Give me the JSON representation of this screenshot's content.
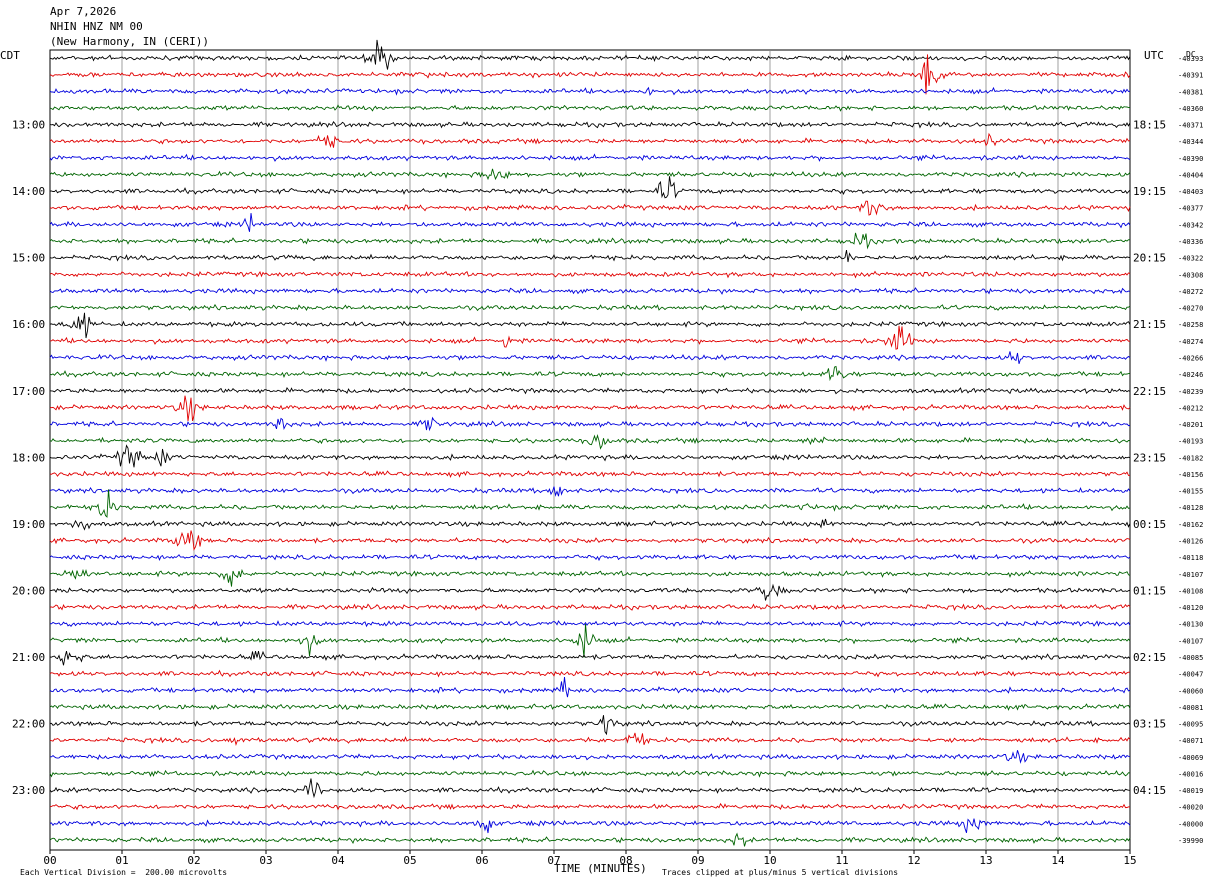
{
  "header": {
    "date": "Apr 7,2026",
    "station": "NHIN HNZ NM 00",
    "location": "(New Harmony, IN (CERI))"
  },
  "left_label": "CDT",
  "right_label": "UTC",
  "dc_label": "DC",
  "footer": {
    "left_note": "Each Vertical Division =  200.00 microvolts",
    "xlabel": "TIME (MINUTES)",
    "right_note": "Traces clipped at plus/minus 5 vertical divisions"
  },
  "colors": {
    "black": "#000000",
    "red": "#e00000",
    "blue": "#0000dd",
    "green": "#006400"
  },
  "chart_data": {
    "type": "line",
    "title": "NHIN HNZ NM 00",
    "xlabel": "TIME (MINUTES)",
    "xlim": [
      0,
      15
    ],
    "x_ticks": [
      "00",
      "01",
      "02",
      "03",
      "04",
      "05",
      "06",
      "07",
      "08",
      "09",
      "10",
      "11",
      "12",
      "13",
      "14",
      "15"
    ],
    "left_hour_labels": [
      "13:00",
      "14:00",
      "15:00",
      "16:00",
      "17:00",
      "18:00",
      "19:00",
      "20:00",
      "21:00",
      "22:00",
      "23:00"
    ],
    "right_hour_labels": [
      "18:15",
      "19:15",
      "20:15",
      "21:15",
      "22:15",
      "23:15",
      "00:15",
      "01:15",
      "02:15",
      "03:15",
      "04:15"
    ],
    "trace_color_cycle": [
      "black",
      "red",
      "blue",
      "green"
    ],
    "dc_offsets": [
      "-40393",
      "-40391",
      "-40381",
      "-40360",
      "-40371",
      "-40344",
      "-40390",
      "-40404",
      "-40403",
      "-40377",
      "-40342",
      "-40336",
      "-40322",
      "-40308",
      "-40272",
      "-40270",
      "-40258",
      "-40274",
      "-40266",
      "-40246",
      "-40239",
      "-40212",
      "-40201",
      "-40193",
      "-40182",
      "-40156",
      "-40155",
      "-40128",
      "-40162",
      "-40126",
      "-40118",
      "-40107",
      "-40108",
      "-40120",
      "-40130",
      "-40107",
      "-40085",
      "-40047",
      "-40060",
      "-40081",
      "-40095",
      "-40071",
      "-40069",
      "-40016",
      "-40019",
      "-40020",
      "-40000",
      "-39990"
    ],
    "grid": true
  }
}
